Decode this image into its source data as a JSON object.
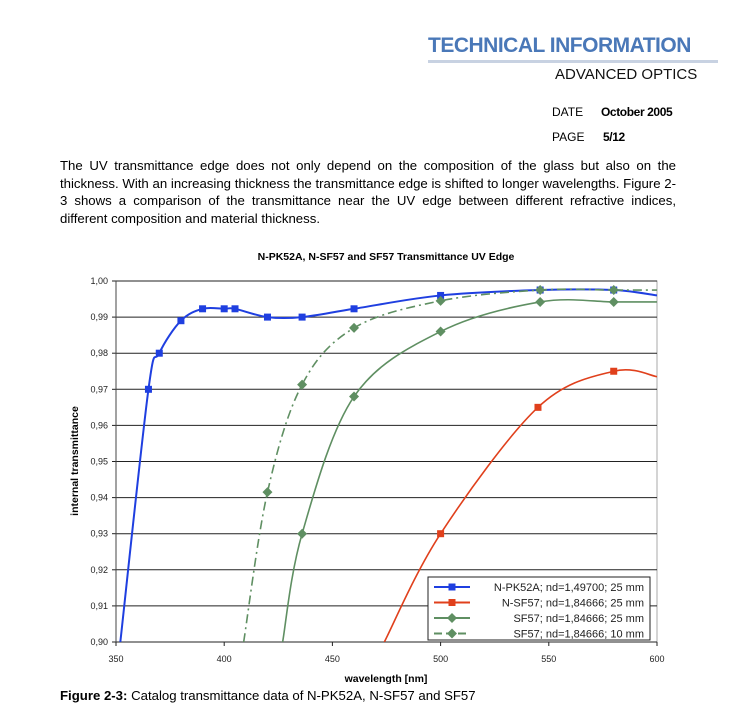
{
  "header": {
    "title": "TECHNICAL INFORMATION",
    "subtitle": "ADVANCED OPTICS",
    "date_label": "DATE",
    "date_value": "October 2005",
    "page_label": "PAGE",
    "page_value": "5/12",
    "accent_color": "#4a78b8"
  },
  "body": {
    "paragraph": "The UV transmittance edge does not only depend on the composition of the glass but also on the thickness. With an increasing thickness the transmittance edge is shifted to longer wavelengths. Figure 2-3 shows a comparison of the transmittance near the UV edge between different refractive indices, different composition and material thickness."
  },
  "caption": {
    "label": "Figure 2-3:",
    "text": " Catalog transmittance data of N-PK52A, N-SF57 and SF57"
  },
  "chart_data": {
    "type": "line",
    "title": "N-PK52A, N-SF57 and SF57 Transmittance UV Edge",
    "xlabel": "wavelength [nm]",
    "ylabel": "internal transmittance",
    "xlim": [
      350,
      600
    ],
    "ylim": [
      0.9,
      1.0
    ],
    "xticks": [
      "350",
      "400",
      "450",
      "500",
      "550",
      "600"
    ],
    "xtick_values": [
      350,
      400,
      450,
      500,
      550,
      600
    ],
    "yticks": [
      "0,90",
      "0,91",
      "0,92",
      "0,93",
      "0,94",
      "0,95",
      "0,96",
      "0,97",
      "0,98",
      "0,99",
      "1,00"
    ],
    "ytick_values": [
      0.9,
      0.91,
      0.92,
      0.93,
      0.94,
      0.95,
      0.96,
      0.97,
      0.98,
      0.99,
      1.0
    ],
    "grid": "horizontal",
    "legend_position": "bottom-right",
    "series": [
      {
        "name": "N-PK52A; nd=1,49700; 25 mm",
        "color": "#1f3fe0",
        "marker": "square",
        "dash": "solid",
        "x": [
          352,
          365,
          370,
          380,
          390,
          400,
          405,
          420,
          436,
          460,
          500,
          546,
          580,
          600
        ],
        "y": [
          0.9,
          0.97,
          0.98,
          0.989,
          0.9923,
          0.9923,
          0.9923,
          0.99,
          0.99,
          0.9923,
          0.996,
          0.9975,
          0.9975,
          0.996
        ],
        "markers": [
          false,
          true,
          true,
          true,
          true,
          true,
          true,
          true,
          true,
          true,
          true,
          true,
          true,
          false
        ]
      },
      {
        "name": "N-SF57; nd=1,84666; 25 mm",
        "color": "#e0401c",
        "marker": "square",
        "dash": "solid",
        "x": [
          474,
          500,
          545,
          580,
          600
        ],
        "y": [
          0.9,
          0.93,
          0.965,
          0.975,
          0.9735
        ],
        "markers": [
          false,
          true,
          true,
          true,
          false
        ]
      },
      {
        "name": "SF57; nd=1,84666; 25 mm",
        "color": "#5f8f62",
        "marker": "diamond",
        "dash": "solid",
        "x": [
          427,
          436,
          460,
          500,
          546,
          580,
          600
        ],
        "y": [
          0.9,
          0.93,
          0.968,
          0.986,
          0.9942,
          0.9942,
          0.9942
        ],
        "markers": [
          false,
          true,
          true,
          true,
          true,
          true,
          false
        ]
      },
      {
        "name": "SF57; nd=1,84666; 10 mm",
        "color": "#5f8f62",
        "marker": "diamond",
        "dash": "dashdot",
        "x": [
          409,
          420,
          436,
          460,
          500,
          546,
          580,
          600
        ],
        "y": [
          0.9,
          0.9415,
          0.9713,
          0.987,
          0.9945,
          0.9975,
          0.9975,
          0.9975
        ],
        "markers": [
          false,
          true,
          true,
          true,
          true,
          true,
          true,
          false
        ]
      }
    ]
  }
}
